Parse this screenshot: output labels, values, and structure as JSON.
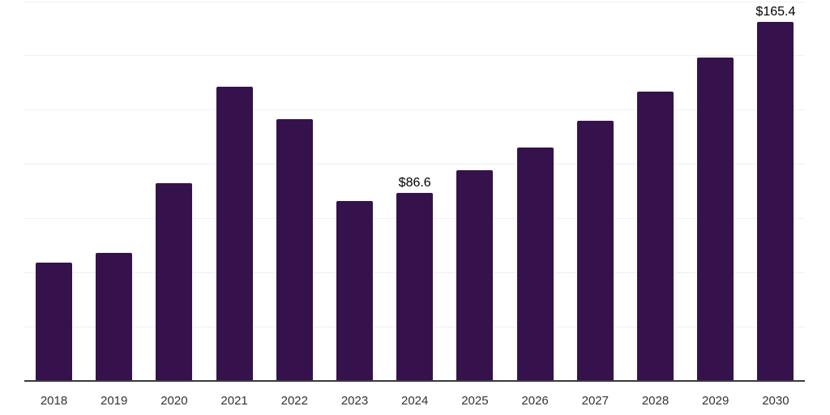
{
  "chart_data": {
    "type": "bar",
    "title": "",
    "xlabel": "",
    "ylabel": "",
    "categories": [
      "2018",
      "2019",
      "2020",
      "2021",
      "2022",
      "2023",
      "2024",
      "2025",
      "2026",
      "2027",
      "2028",
      "2029",
      "2030"
    ],
    "values": [
      54.5,
      59,
      91,
      135.5,
      120.5,
      83,
      86.6,
      97,
      107.5,
      120,
      133.5,
      149,
      165.4
    ],
    "data_labels": [
      null,
      null,
      null,
      null,
      null,
      null,
      "$86.6",
      null,
      null,
      null,
      null,
      null,
      "$165.4"
    ],
    "ylim": [
      0,
      175
    ],
    "gridline_step": 25,
    "grid": true,
    "legend": false,
    "colors": {
      "bar": "#35124B",
      "gridline": "#f0f0f0",
      "axis_line": "#3a3a3a",
      "tick_label": "#333333",
      "data_label": "#000000",
      "background": "#ffffff"
    }
  }
}
